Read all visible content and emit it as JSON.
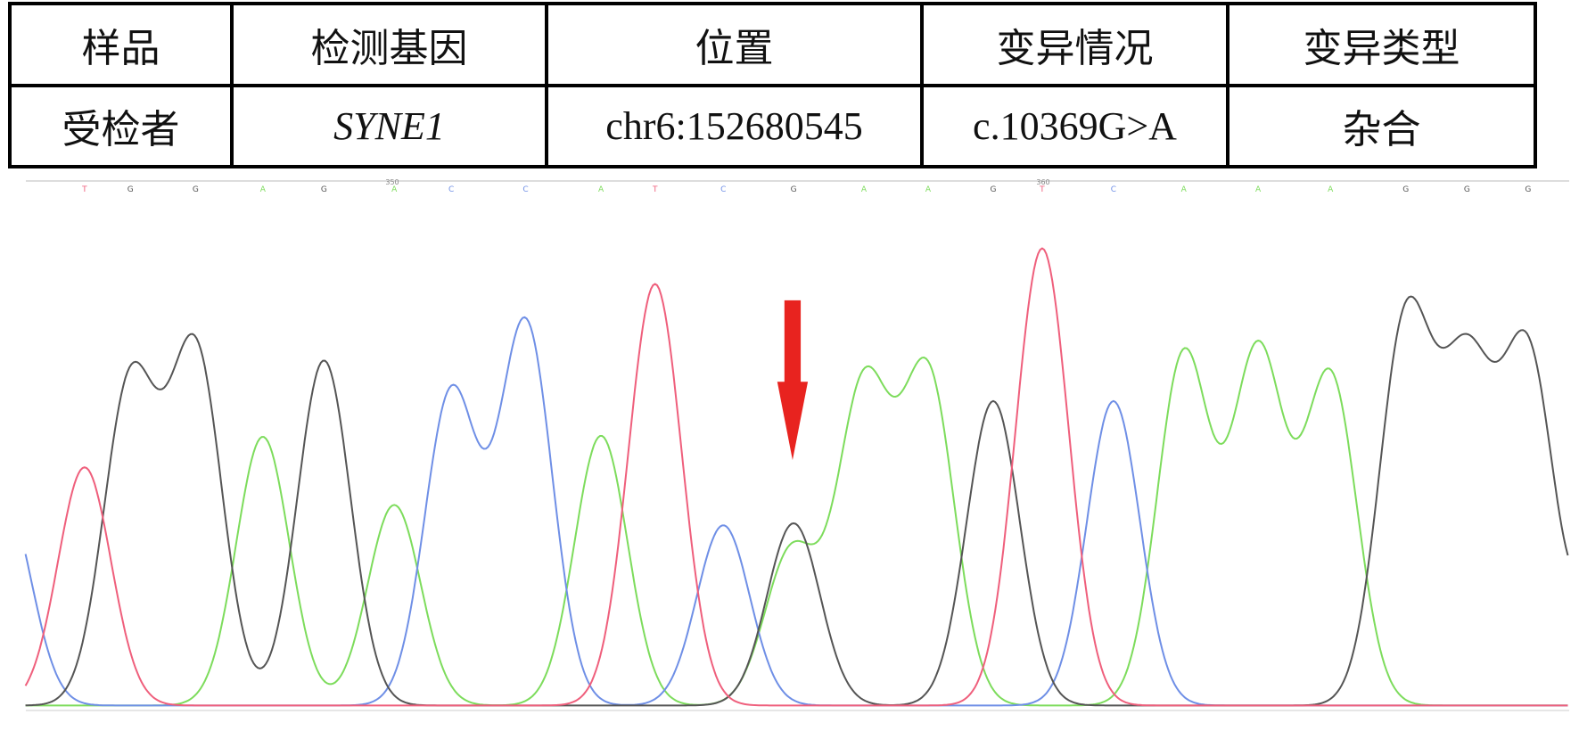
{
  "table": {
    "header": [
      "样品",
      "检测基因",
      "位置",
      "变异情况",
      "变异类型"
    ],
    "rows": [
      [
        "受检者",
        "SYNE1",
        "chr6:152680545",
        "c.10369G>A",
        "杂合"
      ]
    ]
  },
  "chromatogram": {
    "position_labels": [
      "350",
      "360"
    ],
    "bases": [
      "T",
      "G",
      "G",
      "A",
      "G",
      "A",
      "C",
      "C",
      "A",
      "T",
      "C",
      "G",
      "A",
      "A",
      "G",
      "T",
      "C",
      "A",
      "A",
      "A",
      "G",
      "G",
      "G"
    ],
    "base_colors": {
      "A": "#7ddc5c",
      "C": "#6f8fe6",
      "G": "#555555",
      "T": "#ef5f7c"
    },
    "arrow_color": "#e8231f"
  }
}
